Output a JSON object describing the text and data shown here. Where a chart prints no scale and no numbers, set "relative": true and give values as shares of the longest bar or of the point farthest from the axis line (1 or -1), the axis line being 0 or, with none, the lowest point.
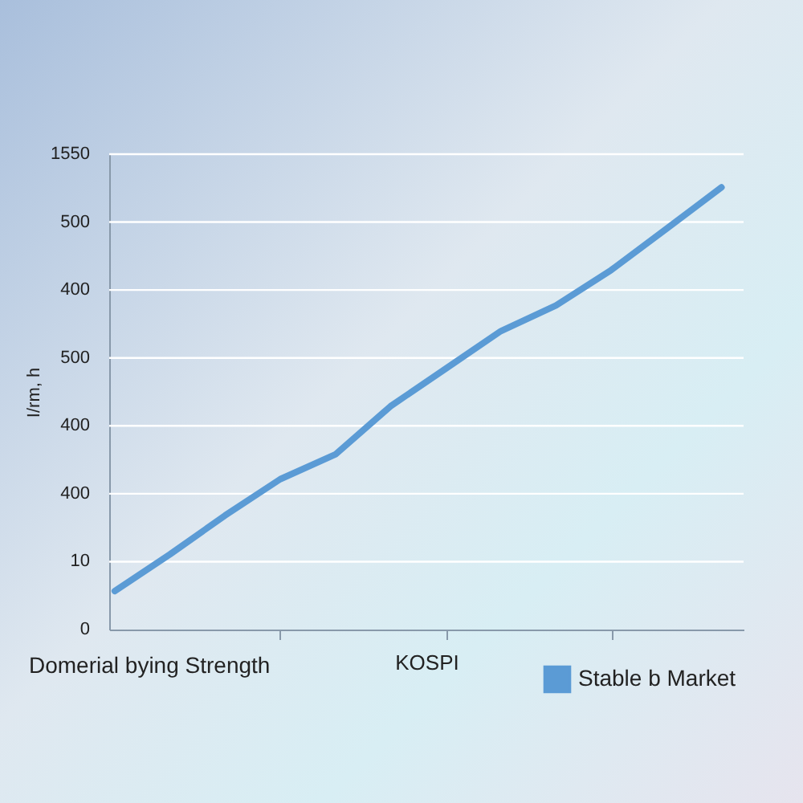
{
  "chart_data": {
    "type": "line",
    "relative": true,
    "ylabel": "I/rm, h",
    "xlabel": "KOSPI",
    "annotations": [
      "1550",
      "500",
      "400",
      "500",
      "400",
      "400",
      "10",
      "0",
      "Domerial bying Strength"
    ],
    "categories": [
      null,
      null,
      null,
      null,
      null,
      null,
      null,
      null,
      null,
      null,
      null,
      null
    ],
    "series": [
      {
        "name": "Stable b Market",
        "color": "#5b9bd5",
        "values": [
          0.087,
          0.17,
          0.258,
          0.34,
          0.396,
          0.505,
          0.59,
          0.675,
          0.733,
          0.813,
          0.906,
          1
        ]
      }
    ],
    "grid": "y",
    "legend": "bottom right",
    "marker": "none",
    "line_style": "solid"
  }
}
